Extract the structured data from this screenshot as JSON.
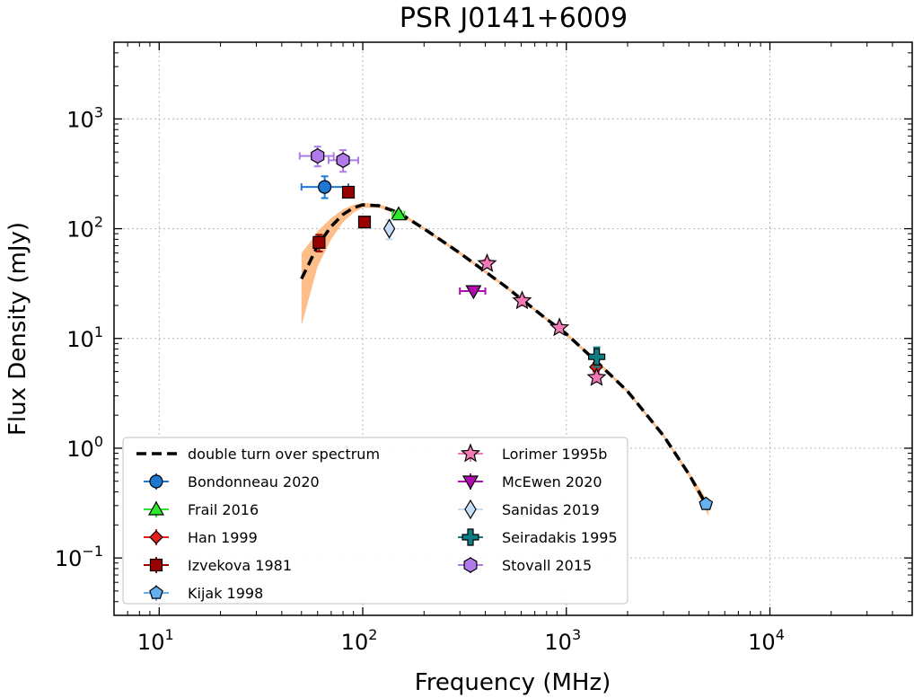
{
  "chart_data": {
    "type": "scatter",
    "title": "PSR J0141+6009",
    "xlabel": "Frequency (MHz)",
    "ylabel": "Flux Density (mJy)",
    "xscale": "log",
    "yscale": "log",
    "xlim": [
      6,
      50000
    ],
    "ylim": [
      0.03,
      5000
    ],
    "grid": true,
    "legend_position": "lower-left",
    "x_ticks": [
      {
        "base": "10",
        "exp": "1",
        "value": 10
      },
      {
        "base": "10",
        "exp": "2",
        "value": 100
      },
      {
        "base": "10",
        "exp": "3",
        "value": 1000
      },
      {
        "base": "10",
        "exp": "4",
        "value": 10000
      }
    ],
    "y_ticks": [
      {
        "base": "10",
        "exp": "−1",
        "value": 0.1
      },
      {
        "base": "10",
        "exp": "0",
        "value": 1
      },
      {
        "base": "10",
        "exp": "1",
        "value": 10
      },
      {
        "base": "10",
        "exp": "2",
        "value": 100
      },
      {
        "base": "10",
        "exp": "3",
        "value": 1000
      }
    ],
    "model": {
      "name": "double turn over spectrum",
      "color": "#000000",
      "band_color": "#fdbe8a",
      "points": [
        {
          "x": 50,
          "y": 35,
          "lo": 13,
          "hi": 60
        },
        {
          "x": 55,
          "y": 50,
          "lo": 25,
          "hi": 75
        },
        {
          "x": 60,
          "y": 70,
          "lo": 45,
          "hi": 95
        },
        {
          "x": 70,
          "y": 105,
          "lo": 80,
          "hi": 125
        },
        {
          "x": 80,
          "y": 135,
          "lo": 115,
          "hi": 150
        },
        {
          "x": 90,
          "y": 155,
          "lo": 140,
          "hi": 165
        },
        {
          "x": 100,
          "y": 165,
          "lo": 155,
          "hi": 172
        },
        {
          "x": 120,
          "y": 162,
          "lo": 155,
          "hi": 168
        },
        {
          "x": 150,
          "y": 140,
          "lo": 135,
          "hi": 145
        },
        {
          "x": 200,
          "y": 100,
          "lo": 97,
          "hi": 103
        },
        {
          "x": 300,
          "y": 60,
          "lo": 58,
          "hi": 62
        },
        {
          "x": 500,
          "y": 30,
          "lo": 29,
          "hi": 31
        },
        {
          "x": 800,
          "y": 15,
          "lo": 14.5,
          "hi": 15.5
        },
        {
          "x": 1000,
          "y": 11,
          "lo": 10.6,
          "hi": 11.4
        },
        {
          "x": 1500,
          "y": 5.5,
          "lo": 5.3,
          "hi": 5.7
        },
        {
          "x": 2000,
          "y": 3.3,
          "lo": 3.2,
          "hi": 3.4
        },
        {
          "x": 3000,
          "y": 1.3,
          "lo": 1.25,
          "hi": 1.35
        },
        {
          "x": 4000,
          "y": 0.58,
          "lo": 0.55,
          "hi": 0.61
        },
        {
          "x": 5000,
          "y": 0.28,
          "lo": 0.24,
          "hi": 0.32
        }
      ]
    },
    "series": [
      {
        "name": "Bondonneau 2020",
        "marker": "circle",
        "color": "#1f77d4",
        "points": [
          {
            "x": 65,
            "y": 240,
            "xerr": [
              50,
              85
            ],
            "yerr": [
              190,
              300
            ]
          }
        ]
      },
      {
        "name": "Frail 2016",
        "marker": "triangle-up",
        "color": "#2ee82e",
        "points": [
          {
            "x": 150,
            "y": 135,
            "xerr": [
              140,
              160
            ],
            "yerr": [
              125,
              145
            ]
          }
        ]
      },
      {
        "name": "Han 1999",
        "marker": "diamond",
        "color": "#e8201a",
        "points": [
          {
            "x": 1400,
            "y": 5.5,
            "xerr": null,
            "yerr": [
              5.0,
              6.0
            ]
          }
        ]
      },
      {
        "name": "Izvekova 1981",
        "marker": "square",
        "color": "#990000",
        "points": [
          {
            "x": 61,
            "y": 75,
            "xerr": null,
            "yerr": [
              62,
              88
            ]
          },
          {
            "x": 85,
            "y": 215,
            "xerr": null,
            "yerr": [
              205,
              225
            ]
          },
          {
            "x": 102,
            "y": 115,
            "xerr": null,
            "yerr": [
              108,
              122
            ]
          }
        ]
      },
      {
        "name": "Kijak 1998",
        "marker": "pentagon",
        "color": "#66b0f0",
        "points": [
          {
            "x": 4850,
            "y": 0.31,
            "xerr": null,
            "yerr": [
              0.29,
              0.33
            ]
          }
        ]
      },
      {
        "name": "Lorimer 1995b",
        "marker": "star",
        "color": "#f07ab4",
        "points": [
          {
            "x": 408,
            "y": 48,
            "xerr": null,
            "yerr": [
              44,
              52
            ]
          },
          {
            "x": 606,
            "y": 22,
            "xerr": null,
            "yerr": [
              20,
              24
            ]
          },
          {
            "x": 925,
            "y": 12.5,
            "xerr": null,
            "yerr": [
              11.5,
              13.5
            ]
          },
          {
            "x": 1408,
            "y": 4.4,
            "xerr": null,
            "yerr": [
              4.0,
              4.8
            ]
          }
        ]
      },
      {
        "name": "McEwen 2020",
        "marker": "triangle-down",
        "color": "#b00cb0",
        "points": [
          {
            "x": 350,
            "y": 27,
            "xerr": [
              300,
              400
            ],
            "yerr": null
          }
        ]
      },
      {
        "name": "Sanidas 2019",
        "marker": "thin-diamond",
        "color": "#c6def5",
        "points": [
          {
            "x": 135,
            "y": 100,
            "xerr": null,
            "yerr": [
              80,
              120
            ]
          }
        ]
      },
      {
        "name": "Seiradakis 1995",
        "marker": "plus",
        "color": "#0e7e84",
        "points": [
          {
            "x": 1410,
            "y": 6.8,
            "xerr": null,
            "yerr": [
              5.5,
              8.3
            ]
          }
        ]
      },
      {
        "name": "Stovall 2015",
        "marker": "hexagon",
        "color": "#b07ae8",
        "points": [
          {
            "x": 60,
            "y": 460,
            "xerr": [
              49,
              72
            ],
            "yerr": [
              370,
              560
            ]
          },
          {
            "x": 80,
            "y": 420,
            "xerr": [
              68,
              95
            ],
            "yerr": [
              330,
              520
            ]
          }
        ]
      }
    ]
  }
}
